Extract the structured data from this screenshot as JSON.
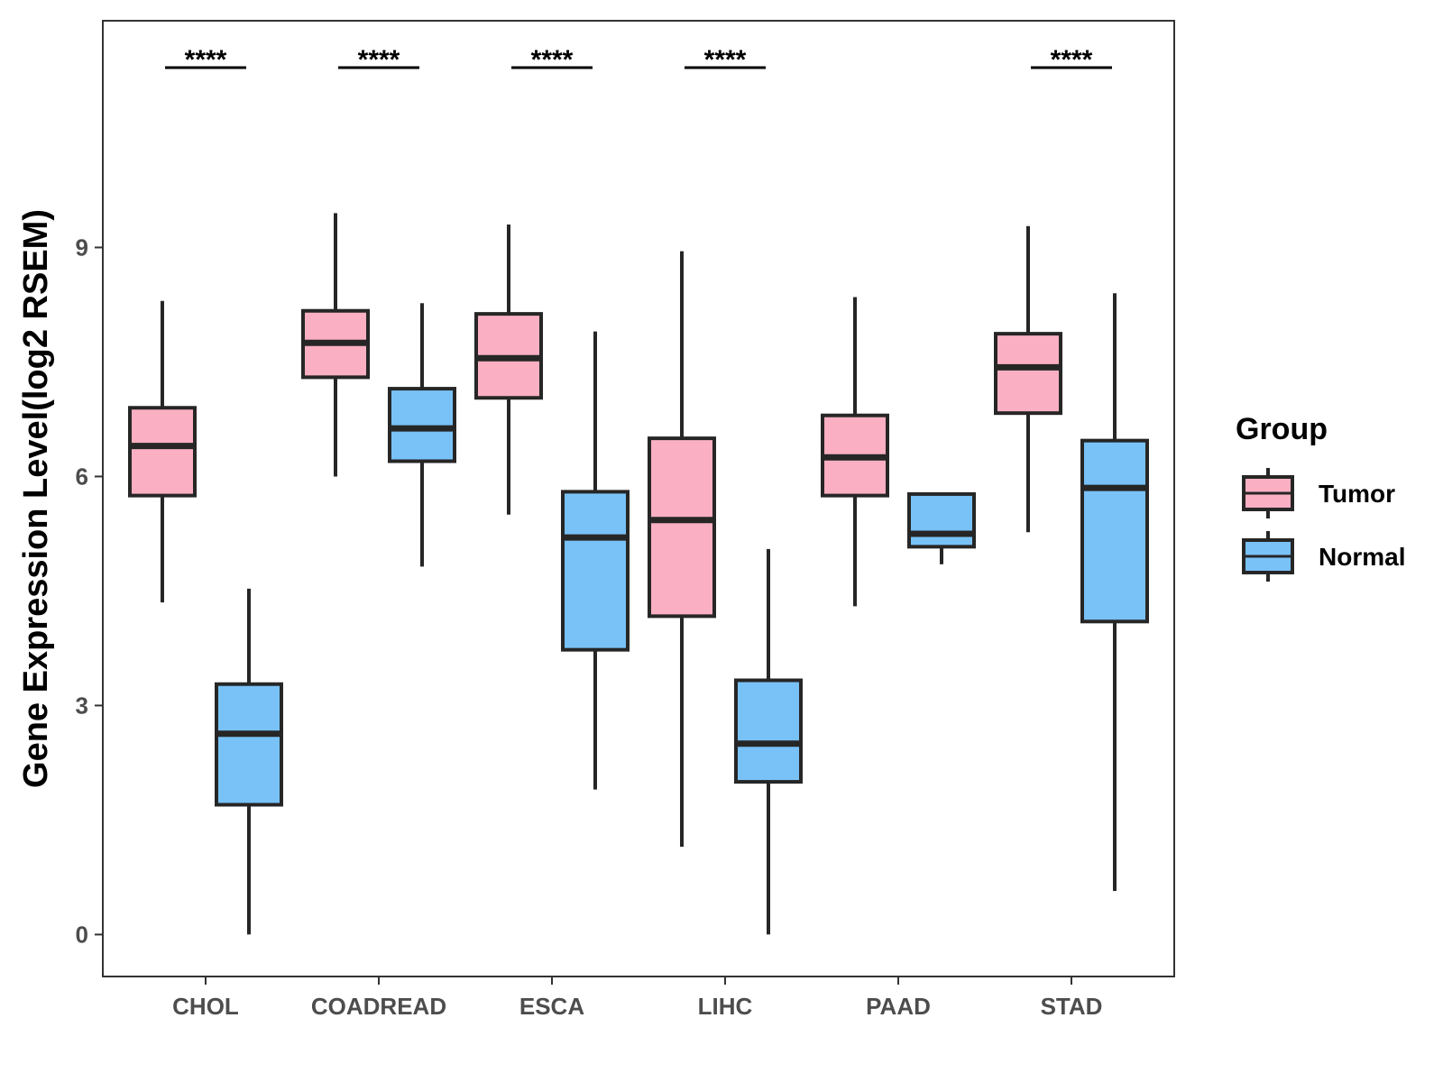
{
  "chart_data": {
    "type": "boxplot",
    "title": "",
    "xlabel": "",
    "ylabel": "Gene Expression Level(log2 RSEM)",
    "ylim": [
      -0.55,
      11.97
    ],
    "yticks": [
      0,
      3,
      6,
      9
    ],
    "ytick_labels": [
      "0",
      "3",
      "6",
      "9"
    ],
    "categories": [
      "CHOL",
      "COADREAD",
      "ESCA",
      "LIHC",
      "PAAD",
      "STAD"
    ],
    "legend": {
      "title": "Group",
      "position": "right",
      "entries": [
        {
          "label": "Tumor",
          "color": "#FAB0C2"
        },
        {
          "label": "Normal",
          "color": "#79C2F8"
        }
      ]
    },
    "series": [
      {
        "name": "Tumor",
        "color": "#FAB0C2",
        "boxes": [
          {
            "whisker_low": 4.35,
            "q1": 5.75,
            "median": 6.4,
            "q3": 6.9,
            "whisker_high": 8.3
          },
          {
            "whisker_low": 6.0,
            "q1": 7.3,
            "median": 7.75,
            "q3": 8.17,
            "whisker_high": 9.45
          },
          {
            "whisker_low": 5.5,
            "q1": 7.03,
            "median": 7.55,
            "q3": 8.13,
            "whisker_high": 9.3
          },
          {
            "whisker_low": 1.15,
            "q1": 4.17,
            "median": 5.43,
            "q3": 6.5,
            "whisker_high": 8.95
          },
          {
            "whisker_low": 4.3,
            "q1": 5.75,
            "median": 6.25,
            "q3": 6.8,
            "whisker_high": 8.35
          },
          {
            "whisker_low": 5.27,
            "q1": 6.83,
            "median": 7.43,
            "q3": 7.87,
            "whisker_high": 9.28
          }
        ]
      },
      {
        "name": "Normal",
        "color": "#79C2F8",
        "boxes": [
          {
            "whisker_low": 0.0,
            "q1": 1.7,
            "median": 2.63,
            "q3": 3.28,
            "whisker_high": 4.53
          },
          {
            "whisker_low": 4.82,
            "q1": 6.2,
            "median": 6.63,
            "q3": 7.15,
            "whisker_high": 8.27
          },
          {
            "whisker_low": 1.9,
            "q1": 3.73,
            "median": 5.2,
            "q3": 5.8,
            "whisker_high": 7.9
          },
          {
            "whisker_low": 0.0,
            "q1": 2.0,
            "median": 2.5,
            "q3": 3.33,
            "whisker_high": 5.05
          },
          {
            "whisker_low": 4.85,
            "q1": 5.08,
            "median": 5.25,
            "q3": 5.77,
            "whisker_high": 5.77
          },
          {
            "whisker_low": 0.57,
            "q1": 4.1,
            "median": 5.85,
            "q3": 6.47,
            "whisker_high": 8.4
          }
        ]
      }
    ],
    "significance": [
      {
        "category": "CHOL",
        "label": "****"
      },
      {
        "category": "COADREAD",
        "label": "****"
      },
      {
        "category": "ESCA",
        "label": "****"
      },
      {
        "category": "LIHC",
        "label": "****"
      },
      {
        "category": "PAAD",
        "label": ""
      },
      {
        "category": "STAD",
        "label": "****"
      }
    ],
    "grid": false
  }
}
